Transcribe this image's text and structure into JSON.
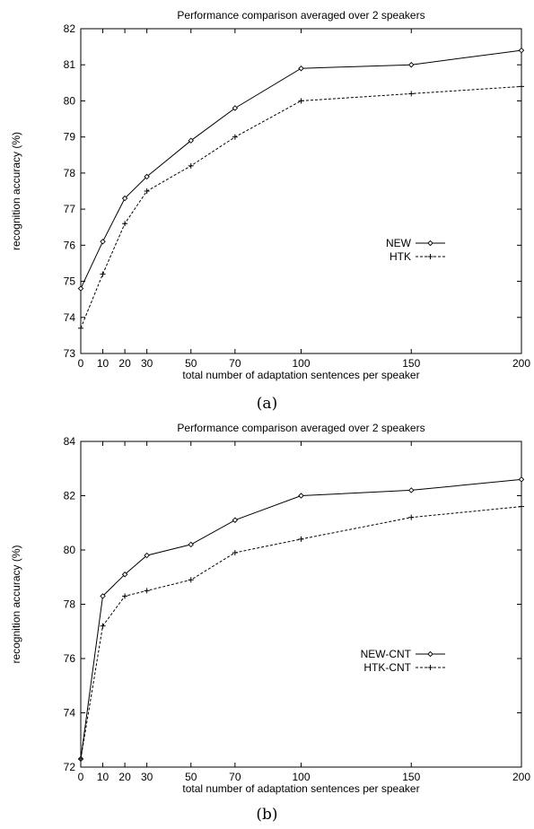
{
  "chart_data": [
    {
      "type": "line",
      "title": "Performance comparison averaged over 2 speakers",
      "xlabel": "total number of adaptation sentences per speaker",
      "ylabel": "recognition accuracy (%)",
      "caption": "(a)",
      "x": [
        0,
        10,
        20,
        30,
        50,
        70,
        100,
        150,
        200
      ],
      "xticks": [
        0,
        10,
        20,
        30,
        50,
        70,
        100,
        150,
        200
      ],
      "yticks": [
        73,
        74,
        75,
        76,
        77,
        78,
        79,
        80,
        81,
        82
      ],
      "xlim": [
        0,
        200
      ],
      "ylim": [
        73,
        82
      ],
      "grid": false,
      "legend_position": "right",
      "series": [
        {
          "name": "NEW",
          "marker": "diamond",
          "line": "solid",
          "values": [
            74.8,
            76.1,
            77.3,
            77.9,
            78.9,
            79.8,
            80.9,
            81.0,
            81.4
          ]
        },
        {
          "name": "HTK",
          "marker": "plus",
          "line": "dashed",
          "values": [
            73.7,
            75.2,
            76.6,
            77.5,
            78.2,
            79.0,
            80.0,
            80.2,
            80.4
          ]
        }
      ]
    },
    {
      "type": "line",
      "title": "Performance comparison averaged over 2 speakers",
      "xlabel": "total number of adaptation sentences per speaker",
      "ylabel": "recognition accuracy (%)",
      "caption": "(b)",
      "x": [
        0,
        10,
        20,
        30,
        50,
        70,
        100,
        150,
        200
      ],
      "xticks": [
        0,
        10,
        20,
        30,
        50,
        70,
        100,
        150,
        200
      ],
      "yticks": [
        72,
        74,
        76,
        78,
        80,
        82,
        84
      ],
      "xlim": [
        0,
        200
      ],
      "ylim": [
        72,
        84
      ],
      "grid": false,
      "legend_position": "bottom-right",
      "series": [
        {
          "name": "NEW-CNT",
          "marker": "diamond",
          "line": "solid",
          "values": [
            72.3,
            78.3,
            79.1,
            79.8,
            80.2,
            81.1,
            82.0,
            82.2,
            82.6
          ]
        },
        {
          "name": "HTK-CNT",
          "marker": "plus",
          "line": "dashed",
          "values": [
            72.3,
            77.2,
            78.3,
            78.5,
            78.9,
            79.9,
            80.4,
            81.2,
            81.6
          ]
        }
      ]
    }
  ]
}
